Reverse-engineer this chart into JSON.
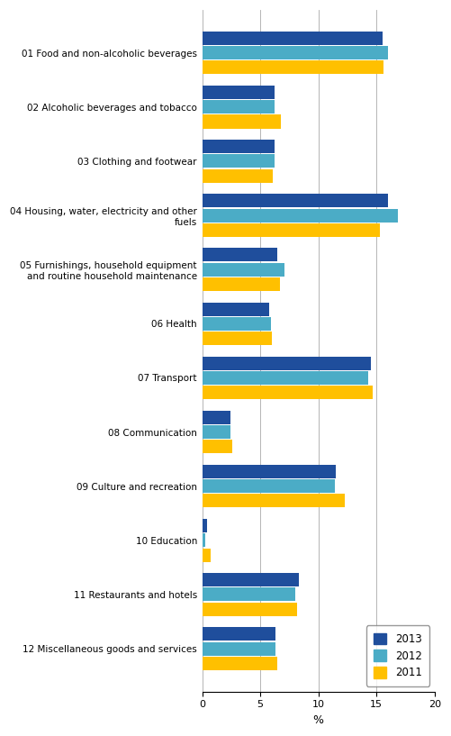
{
  "categories": [
    "01 Food and non-alcoholic beverages",
    "02 Alcoholic beverages and tobacco",
    "03 Clothing and footwear",
    "04 Housing, water, electricity and other\nfuels",
    "05 Furnishings, household equipment\nand routine household maintenance",
    "06 Health",
    "07 Transport",
    "08 Communication",
    "09 Culture and recreation",
    "10 Education",
    "11 Restaurants and hotels",
    "12 Miscellaneous goods and services"
  ],
  "values_2013": [
    15.5,
    6.2,
    6.2,
    16.0,
    6.5,
    5.8,
    14.5,
    2.4,
    11.5,
    0.4,
    8.3,
    6.3
  ],
  "values_2012": [
    16.0,
    6.2,
    6.2,
    16.8,
    7.1,
    5.9,
    14.3,
    2.4,
    11.4,
    0.3,
    8.0,
    6.3
  ],
  "values_2011": [
    15.6,
    6.8,
    6.1,
    15.3,
    6.7,
    6.0,
    14.7,
    2.6,
    12.3,
    0.7,
    8.2,
    6.5
  ],
  "color_2013": "#1f4e9c",
  "color_2012": "#4bacc6",
  "color_2011": "#ffc000",
  "xlim": [
    0,
    20
  ],
  "xticks": [
    0,
    5,
    10,
    15,
    20
  ],
  "xlabel": "%",
  "legend_labels": [
    "2013",
    "2012",
    "2011"
  ]
}
